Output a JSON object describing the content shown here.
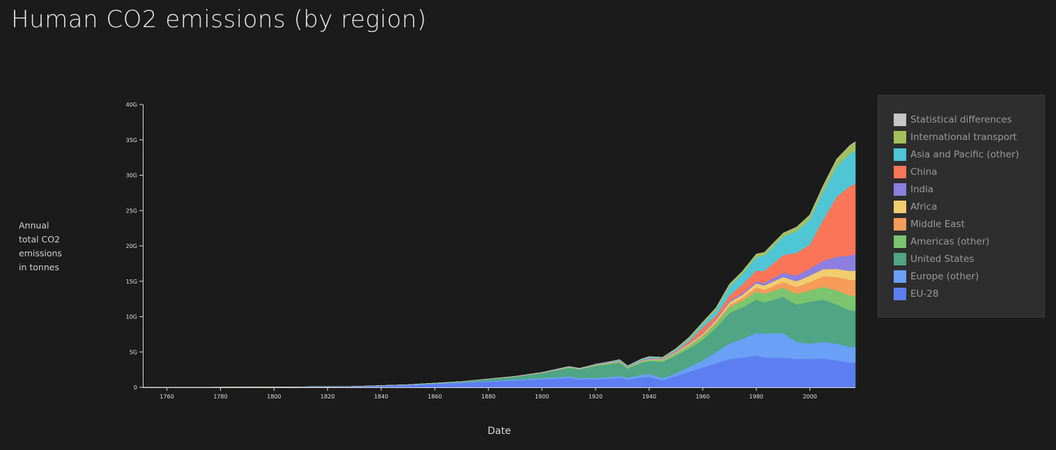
{
  "title": "Human CO2 emissions (by region)",
  "chart_data": {
    "type": "area",
    "stacked": true,
    "title": "Human CO2 emissions (by region)",
    "xlabel": "Date",
    "ylabel": "Annual\ntotal CO2\nemissions\nin tonnes",
    "xlim": [
      1751,
      2017
    ],
    "ylim": [
      0,
      40000000000
    ],
    "x_ticks": [
      1760,
      1780,
      1800,
      1820,
      1840,
      1860,
      1880,
      1900,
      1920,
      1940,
      1960,
      1980,
      2000
    ],
    "x_tick_labels": [
      "1760",
      "1780",
      "1800",
      "1820",
      "1840",
      "1860",
      "1880",
      "1900",
      "1920",
      "1940",
      "1960",
      "1980",
      "2000"
    ],
    "y_ticks": [
      0,
      5000000000,
      10000000000,
      15000000000,
      20000000000,
      25000000000,
      30000000000,
      35000000000,
      40000000000
    ],
    "y_tick_labels": [
      "0",
      "5G",
      "10G",
      "15G",
      "20G",
      "25G",
      "30G",
      "35G",
      "40G"
    ],
    "grid": false,
    "legend_position": "right",
    "x": [
      1751,
      1800,
      1830,
      1850,
      1870,
      1890,
      1900,
      1910,
      1914,
      1918,
      1920,
      1925,
      1929,
      1932,
      1937,
      1940,
      1945,
      1950,
      1955,
      1960,
      1965,
      1970,
      1975,
      1980,
      1983,
      1990,
      1995,
      2000,
      2005,
      2010,
      2015,
      2017
    ],
    "series": [
      {
        "name": "EU-28",
        "color": "#5d7ef0",
        "values": [
          0.01,
          0.03,
          0.1,
          0.3,
          0.6,
          0.95,
          1.1,
          1.3,
          1.1,
          1.15,
          1.1,
          1.2,
          1.3,
          1.1,
          1.4,
          1.5,
          1.0,
          1.6,
          2.2,
          2.8,
          3.4,
          4.0,
          4.2,
          4.5,
          4.2,
          4.2,
          4.0,
          4.0,
          4.1,
          3.8,
          3.5,
          3.5
        ]
      },
      {
        "name": "Europe (other)",
        "color": "#6aa0f5",
        "values": [
          0,
          0.005,
          0.02,
          0.05,
          0.1,
          0.15,
          0.2,
          0.25,
          0.2,
          0.2,
          0.2,
          0.25,
          0.3,
          0.25,
          0.35,
          0.4,
          0.3,
          0.4,
          0.7,
          1.0,
          1.6,
          2.2,
          2.7,
          3.2,
          3.4,
          3.5,
          2.4,
          2.2,
          2.3,
          2.4,
          2.2,
          2.2
        ]
      },
      {
        "name": "United States",
        "color": "#4fa584",
        "values": [
          0,
          0.002,
          0.01,
          0.02,
          0.1,
          0.4,
          0.7,
          1.2,
          1.2,
          1.5,
          1.7,
          1.8,
          1.9,
          1.3,
          1.7,
          1.8,
          2.3,
          2.5,
          2.6,
          2.9,
          3.4,
          4.3,
          4.4,
          4.7,
          4.4,
          5.1,
          5.3,
          5.9,
          6.0,
          5.5,
          5.2,
          5.1
        ]
      },
      {
        "name": "Americas (other)",
        "color": "#7cc46e",
        "values": [
          0,
          0,
          0,
          0.005,
          0.01,
          0.03,
          0.05,
          0.08,
          0.08,
          0.09,
          0.1,
          0.12,
          0.14,
          0.12,
          0.16,
          0.18,
          0.22,
          0.3,
          0.4,
          0.5,
          0.65,
          0.85,
          1.0,
          1.2,
          1.2,
          1.3,
          1.5,
          1.6,
          1.8,
          2.0,
          2.1,
          2.1
        ]
      },
      {
        "name": "Middle East",
        "color": "#f59c5a",
        "values": [
          0,
          0,
          0,
          0,
          0,
          0,
          0,
          0.005,
          0.005,
          0.005,
          0.01,
          0.015,
          0.02,
          0.02,
          0.03,
          0.04,
          0.05,
          0.07,
          0.1,
          0.15,
          0.2,
          0.3,
          0.4,
          0.55,
          0.6,
          0.8,
          1.0,
          1.2,
          1.5,
          1.9,
          2.2,
          2.3
        ]
      },
      {
        "name": "Africa",
        "color": "#f0cd6e",
        "values": [
          0,
          0,
          0,
          0,
          0.002,
          0.005,
          0.01,
          0.02,
          0.02,
          0.02,
          0.03,
          0.04,
          0.04,
          0.04,
          0.05,
          0.06,
          0.07,
          0.1,
          0.15,
          0.2,
          0.25,
          0.35,
          0.45,
          0.55,
          0.6,
          0.7,
          0.8,
          0.9,
          1.0,
          1.15,
          1.25,
          1.3
        ]
      },
      {
        "name": "India",
        "color": "#8c7fe0",
        "values": [
          0,
          0,
          0,
          0,
          0.005,
          0.01,
          0.02,
          0.03,
          0.03,
          0.03,
          0.04,
          0.05,
          0.05,
          0.05,
          0.06,
          0.07,
          0.07,
          0.08,
          0.1,
          0.12,
          0.16,
          0.2,
          0.25,
          0.3,
          0.35,
          0.6,
          0.8,
          1.0,
          1.2,
          1.7,
          2.2,
          2.4
        ]
      },
      {
        "name": "China",
        "color": "#fb7658",
        "values": [
          0,
          0,
          0,
          0,
          0,
          0,
          0.005,
          0.01,
          0.01,
          0.01,
          0.02,
          0.02,
          0.03,
          0.03,
          0.04,
          0.05,
          0.04,
          0.08,
          0.3,
          0.8,
          0.5,
          0.8,
          1.2,
          1.5,
          1.7,
          2.5,
          3.2,
          3.4,
          5.8,
          8.5,
          9.8,
          9.9
        ]
      },
      {
        "name": "Asia and Pacific (other)",
        "color": "#4fc6d6",
        "values": [
          0,
          0,
          0,
          0,
          0.003,
          0.01,
          0.02,
          0.04,
          0.04,
          0.05,
          0.06,
          0.08,
          0.1,
          0.1,
          0.15,
          0.18,
          0.1,
          0.2,
          0.35,
          0.5,
          0.8,
          1.2,
          1.5,
          1.9,
          2.2,
          2.6,
          3.1,
          3.5,
          4.0,
          4.3,
          4.6,
          4.7
        ]
      },
      {
        "name": "International transport",
        "color": "#a3bf5c",
        "values": [
          0,
          0,
          0,
          0,
          0,
          0,
          0,
          0.01,
          0.01,
          0.01,
          0.02,
          0.03,
          0.04,
          0.04,
          0.05,
          0.06,
          0.1,
          0.15,
          0.2,
          0.25,
          0.3,
          0.38,
          0.4,
          0.45,
          0.42,
          0.5,
          0.55,
          0.65,
          0.8,
          1.0,
          1.15,
          1.2
        ]
      },
      {
        "name": "Statistical differences",
        "color": "#c6c6c6",
        "values": [
          0,
          0,
          0,
          0,
          0,
          0,
          0,
          0,
          0,
          0,
          0,
          0,
          0,
          0,
          0,
          0,
          0,
          0,
          0,
          0,
          0,
          0,
          0,
          0,
          0,
          0,
          0,
          0.05,
          0.05,
          0.05,
          0.05,
          0.05
        ]
      }
    ],
    "value_unit": "billion tonnes"
  }
}
